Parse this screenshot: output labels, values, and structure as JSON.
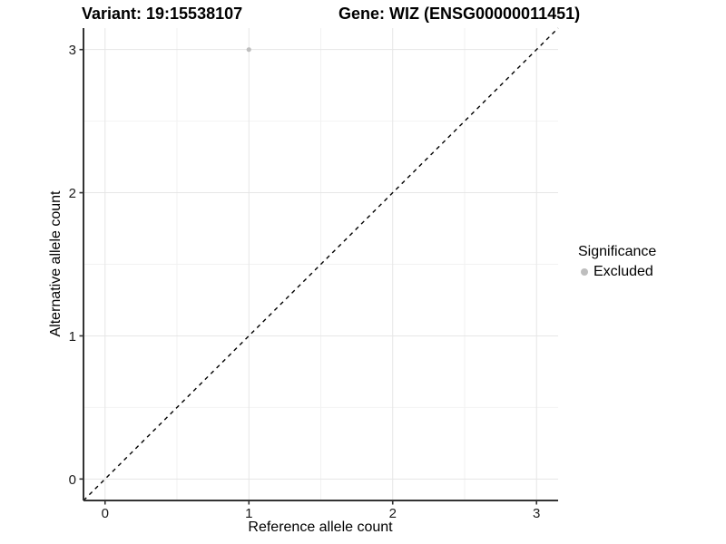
{
  "chart_data": {
    "type": "scatter",
    "title_left": "Variant: 19:15538107",
    "title_right": "Gene: WIZ (ENSG00000011451)",
    "xlabel": "Reference allele count",
    "ylabel": "Alternative allele count",
    "xlim": [
      -0.15,
      3.15
    ],
    "ylim": [
      -0.15,
      3.15
    ],
    "xticks": [
      0,
      1,
      2,
      3
    ],
    "yticks": [
      0,
      1,
      2,
      3
    ],
    "x_minor": [
      0.5,
      1.5,
      2.5
    ],
    "y_minor": [
      0.5,
      1.5,
      2.5
    ],
    "grid": "major and minor gridlines, white panel background, no top/right border",
    "points": [
      {
        "x": 1,
        "y": 3,
        "series": "Excluded"
      }
    ],
    "identity_line": {
      "slope": 1,
      "intercept": 0,
      "style": "dashed",
      "color": "#000000"
    },
    "series": [
      {
        "name": "Excluded",
        "color": "#bebebe"
      }
    ],
    "legend": {
      "title": "Significance",
      "position": "right",
      "entries": [
        {
          "label": "Excluded",
          "color": "#bebebe"
        }
      ]
    },
    "colors": {
      "grid_major": "#e6e6e6",
      "grid_minor": "#f2f2f2",
      "axis": "#333333",
      "tick_text": "#1a1a1a",
      "point": "#bebebe"
    }
  }
}
